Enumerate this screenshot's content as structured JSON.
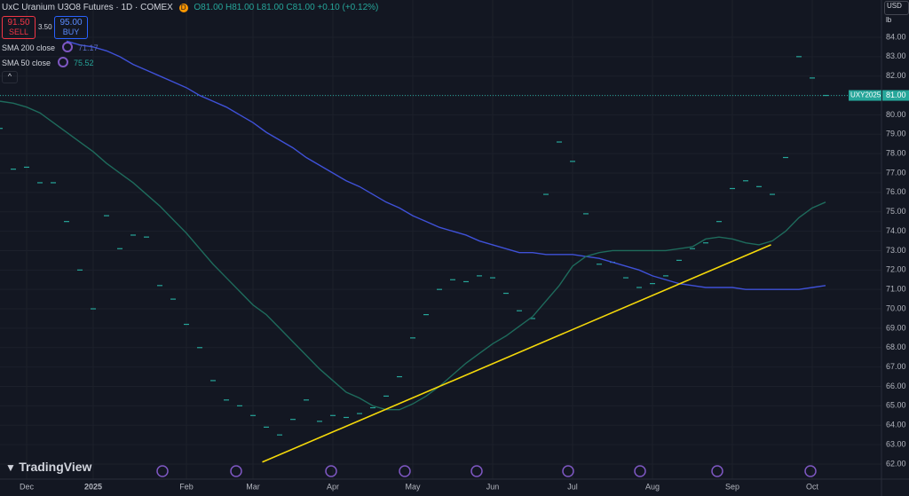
{
  "header": {
    "symbol_title": "UxC Uranium U3O8 Futures · 1D · COMEX",
    "open": "O81.00",
    "high": "H81.00",
    "low": "L81.00",
    "close": "C81.00",
    "change": "+0.10 (+0.12%)",
    "delay_badge": "D",
    "sell_price": "91.50",
    "sell_label": "SELL",
    "spread": "3.50",
    "buy_price": "95.00",
    "buy_label": "BUY",
    "currency": "USD",
    "unit": "lb",
    "brand": "TradingView"
  },
  "chart_data": {
    "type": "line",
    "categories": [
      null,
      null,
      "Dec",
      null,
      null,
      null,
      null,
      "2025",
      null,
      null,
      null,
      null,
      null,
      null,
      "Feb",
      null,
      null,
      null,
      null,
      "Mar",
      null,
      null,
      null,
      null,
      null,
      "Apr",
      null,
      null,
      null,
      null,
      null,
      "May",
      null,
      null,
      null,
      null,
      null,
      "Jun",
      null,
      null,
      null,
      null,
      null,
      "Jul",
      null,
      null,
      null,
      null,
      null,
      "Aug",
      null,
      null,
      null,
      null,
      null,
      "Sep",
      null,
      null,
      null,
      null,
      null,
      "Oct",
      null
    ],
    "series": [
      {
        "name": "UXY2025",
        "style": "dash",
        "color": "#26a69a",
        "values": [
          79.3,
          77.2,
          77.3,
          76.5,
          76.5,
          74.5,
          72.0,
          70.0,
          74.8,
          73.1,
          73.8,
          73.7,
          71.2,
          70.5,
          69.2,
          68.0,
          66.3,
          65.3,
          65.0,
          64.5,
          63.9,
          63.5,
          64.3,
          65.3,
          64.2,
          64.5,
          64.4,
          64.6,
          64.9,
          65.5,
          66.5,
          68.5,
          69.7,
          71.0,
          71.5,
          71.4,
          71.7,
          71.6,
          70.8,
          69.9,
          69.5,
          75.9,
          78.6,
          77.6,
          74.9,
          72.3,
          72.4,
          71.6,
          71.1,
          71.3,
          71.7,
          72.5,
          73.1,
          73.4,
          74.5,
          76.2,
          76.6,
          76.3,
          75.9,
          77.8,
          83.0,
          81.9,
          81.0
        ]
      },
      {
        "name": "SMA 200 close",
        "legend_value": "71.17",
        "style": "line",
        "color": "#3f51d8",
        "values": [
          null,
          null,
          null,
          null,
          null,
          83.8,
          83.6,
          83.5,
          83.3,
          83.0,
          82.6,
          82.3,
          82.0,
          81.7,
          81.4,
          81.0,
          80.7,
          80.4,
          80.0,
          79.6,
          79.1,
          78.7,
          78.3,
          77.8,
          77.4,
          77.0,
          76.6,
          76.3,
          75.9,
          75.5,
          75.2,
          74.8,
          74.5,
          74.2,
          74.0,
          73.8,
          73.5,
          73.3,
          73.1,
          72.9,
          72.9,
          72.8,
          72.8,
          72.8,
          72.7,
          72.6,
          72.4,
          72.2,
          72.0,
          71.7,
          71.5,
          71.3,
          71.2,
          71.1,
          71.1,
          71.1,
          71.0,
          71.0,
          71.0,
          71.0,
          71.0,
          71.1,
          71.2
        ]
      },
      {
        "name": "SMA 50 close",
        "legend_value": "75.52",
        "style": "line",
        "color": "#1e6b5c",
        "values": [
          80.7,
          80.6,
          80.4,
          80.1,
          79.6,
          79.1,
          78.6,
          78.1,
          77.5,
          77.0,
          76.5,
          75.9,
          75.3,
          74.6,
          73.9,
          73.1,
          72.3,
          71.6,
          70.9,
          70.2,
          69.7,
          69.0,
          68.3,
          67.6,
          66.9,
          66.3,
          65.7,
          65.4,
          65.0,
          64.8,
          64.8,
          65.1,
          65.5,
          66.0,
          66.6,
          67.2,
          67.7,
          68.2,
          68.6,
          69.1,
          69.6,
          70.4,
          71.2,
          72.2,
          72.7,
          72.9,
          73.0,
          73.0,
          73.0,
          73.0,
          73.0,
          73.1,
          73.2,
          73.6,
          73.7,
          73.6,
          73.4,
          73.3,
          73.5,
          74.0,
          74.7,
          75.2,
          75.5
        ]
      }
    ],
    "trendline": {
      "x": [
        19.7,
        57.9
      ],
      "values": [
        62.1,
        73.3
      ],
      "color": "#f5d90a"
    },
    "last_price": {
      "value": 81,
      "label": "81.00"
    },
    "ylim": [
      61.22,
      85.92
    ],
    "yticks": [
      {
        "value": 62,
        "label": "62.00"
      },
      {
        "value": 63,
        "label": "63.00"
      },
      {
        "value": 64,
        "label": "64.00"
      },
      {
        "value": 65,
        "label": "65.00"
      },
      {
        "value": 66,
        "label": "66.00"
      },
      {
        "value": 67,
        "label": "67.00"
      },
      {
        "value": 68,
        "label": "68.00"
      },
      {
        "value": 69,
        "label": "69.00"
      },
      {
        "value": 70,
        "label": "70.00"
      },
      {
        "value": 71,
        "label": "71.00"
      },
      {
        "value": 72,
        "label": "72.00"
      },
      {
        "value": 73,
        "label": "73.00"
      },
      {
        "value": 74,
        "label": "74.00"
      },
      {
        "value": 75,
        "label": "75.00"
      },
      {
        "value": 76,
        "label": "76.00"
      },
      {
        "value": 77,
        "label": "77.00"
      },
      {
        "value": 78,
        "label": "78.00"
      },
      {
        "value": 79,
        "label": "79.00"
      },
      {
        "value": 80,
        "label": "80.00"
      },
      {
        "value": 81,
        "label": "81.00"
      },
      {
        "value": 82,
        "label": "82.00"
      },
      {
        "value": 83,
        "label": "83.00"
      },
      {
        "value": 84,
        "label": "84.00"
      }
    ],
    "grid": true
  }
}
